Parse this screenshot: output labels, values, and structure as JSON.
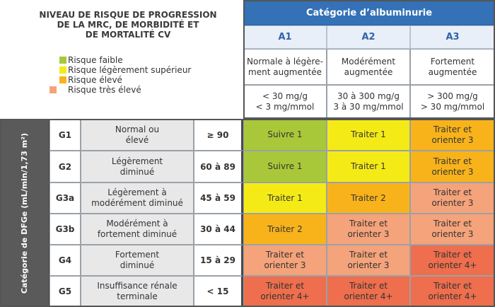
{
  "title_lines": [
    "NIVEAU DE RISQUE DE PROGRESSION",
    "DE LA MRC, DE MORBIDITÉ ET",
    "DE MORTALITÉ CV"
  ],
  "legend": [
    {
      "label": "Risque faible",
      "color": "#a8c839"
    },
    {
      "label": "Risque légèrement  supérieur",
      "color": "#f4eb16"
    },
    {
      "label": "Risque élevé",
      "color": "#f8b31b"
    },
    {
      "label": "Risque très élevé",
      "color": "#f5a37a"
    }
  ],
  "albuminuria_header": "Catégorie d’albuminurie",
  "albuminuria_columns": [
    {
      "code": "A1",
      "description": "Normale à légère-ment augmentée",
      "value": "< 30 mg/g\n< 3 mg/mmol"
    },
    {
      "code": "A2",
      "description": "Modérément\naugmentée",
      "value": "30 à 300 mg/g\n3 à 30 mg/mmol"
    },
    {
      "code": "A3",
      "description": "Fortement\naugmentée",
      "value": "> 300 mg/g\n> 30 mg/mmol"
    }
  ],
  "dfg_axis_label": "Catégorie de DFGe (mL/min/1,73 m²)",
  "rows": [
    {
      "code": "G1",
      "description": "Normal ou\nélevé",
      "range": "≥ 90",
      "cells": [
        {
          "text": "Suivre 1",
          "color": "#a8c839"
        },
        {
          "text": "Traiter 1",
          "color": "#f4eb16"
        },
        {
          "text": "Traiter et\norienter 3",
          "color": "#f8b31b"
        }
      ]
    },
    {
      "code": "G2",
      "description": "Légèrement\ndiminué",
      "range": "60 à 89",
      "cells": [
        {
          "text": "Suivre 1",
          "color": "#a8c839"
        },
        {
          "text": "Traiter 1",
          "color": "#f4eb16"
        },
        {
          "text": "Traiter et\norienter 3",
          "color": "#f8b31b"
        }
      ]
    },
    {
      "code": "G3a",
      "description": "Légèrement à\nmodérément diminué",
      "range": "45 à 59",
      "cells": [
        {
          "text": "Traiter 1",
          "color": "#f4eb16"
        },
        {
          "text": "Traiter 2",
          "color": "#f8b31b"
        },
        {
          "text": "Traiter et\norienter 3",
          "color": "#f5a37a"
        }
      ]
    },
    {
      "code": "G3b",
      "description": "Modérément à\nfortement diminué",
      "range": "30 à 44",
      "cells": [
        {
          "text": "Traiter 2",
          "color": "#f8b31b"
        },
        {
          "text": "Traiter et\norienter 3",
          "color": "#f5a37a"
        },
        {
          "text": "Traiter et\norienter 3",
          "color": "#f5a37a"
        }
      ]
    },
    {
      "code": "G4",
      "description": "Fortement\ndiminué",
      "range": "15 à 29",
      "cells": [
        {
          "text": "Traiter et\norienter 3",
          "color": "#f5a37a"
        },
        {
          "text": "Traiter et\norienter 3",
          "color": "#f5a37a"
        },
        {
          "text": "Traiter et\norienter 4+",
          "color": "#ee6e4d"
        }
      ]
    },
    {
      "code": "G5",
      "description": "Insuffisance rénale\nterminale",
      "range": "< 15",
      "cells": [
        {
          "text": "Traiter et\norienter 4+",
          "color": "#ee6e4d"
        },
        {
          "text": "Traiter et\norienter 4+",
          "color": "#ee6e4d"
        },
        {
          "text": "Traiter et\norienter 4+",
          "color": "#ee6e4d"
        }
      ]
    }
  ]
}
